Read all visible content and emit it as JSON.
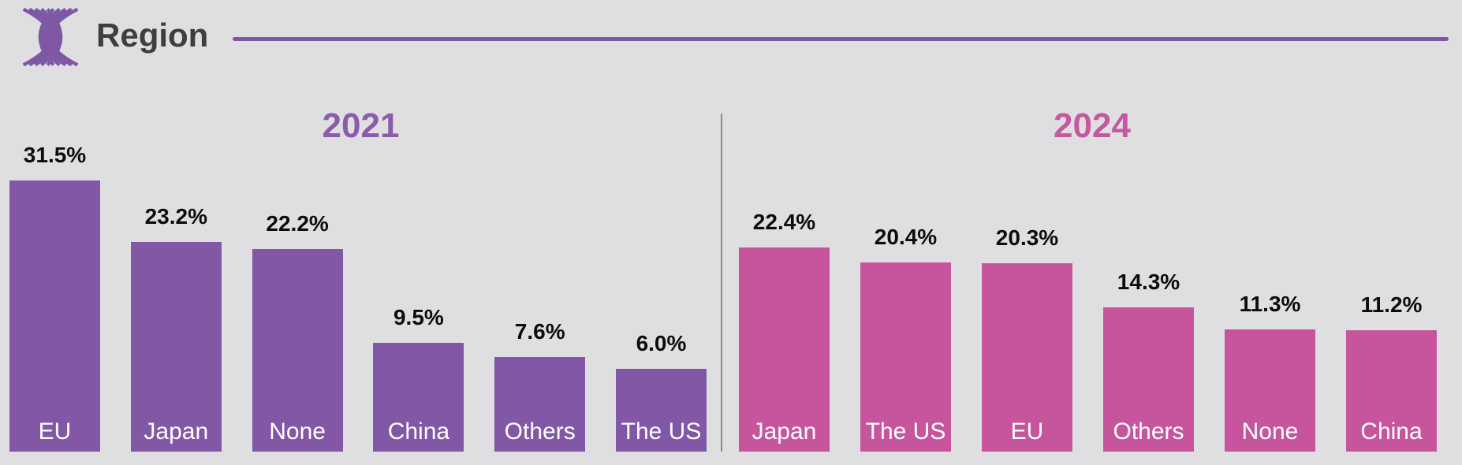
{
  "header": {
    "title": "Region",
    "logo_icon": "asean-emblem-icon",
    "accent_line_color": "#7b57a5",
    "title_color": "#3e3d40"
  },
  "background_color": "#dfdfe1",
  "divider_color": "#8a8a8d",
  "chart_data": [
    {
      "type": "bar",
      "title": "2021",
      "title_color": "#8a5ca9",
      "bar_color": "#8257a6",
      "label_text_color": "#ffffff",
      "value_text_color": "#0c0c0c",
      "unit": "%",
      "categories": [
        "EU",
        "Japan",
        "None",
        "China",
        "Others",
        "The US"
      ],
      "values": [
        31.5,
        23.2,
        22.2,
        9.5,
        7.6,
        6.0
      ],
      "value_labels": [
        "31.5%",
        "23.2%",
        "22.2%",
        "9.5%",
        "7.6%",
        "6.0%"
      ],
      "legend": "none",
      "axes": "hidden; value labels above bars, category labels inside bar bottoms"
    },
    {
      "type": "bar",
      "title": "2024",
      "title_color": "#c7589f",
      "bar_color": "#c7559e",
      "label_text_color": "#ffffff",
      "value_text_color": "#0c0c0c",
      "unit": "%",
      "categories": [
        "Japan",
        "The US",
        "EU",
        "Others",
        "None",
        "China"
      ],
      "values": [
        22.4,
        20.4,
        20.3,
        14.3,
        11.3,
        11.2
      ],
      "value_labels": [
        "22.4%",
        "20.4%",
        "20.3%",
        "14.3%",
        "11.3%",
        "11.2%"
      ],
      "legend": "none",
      "axes": "hidden; value labels above bars, category labels inside bar bottoms"
    }
  ]
}
